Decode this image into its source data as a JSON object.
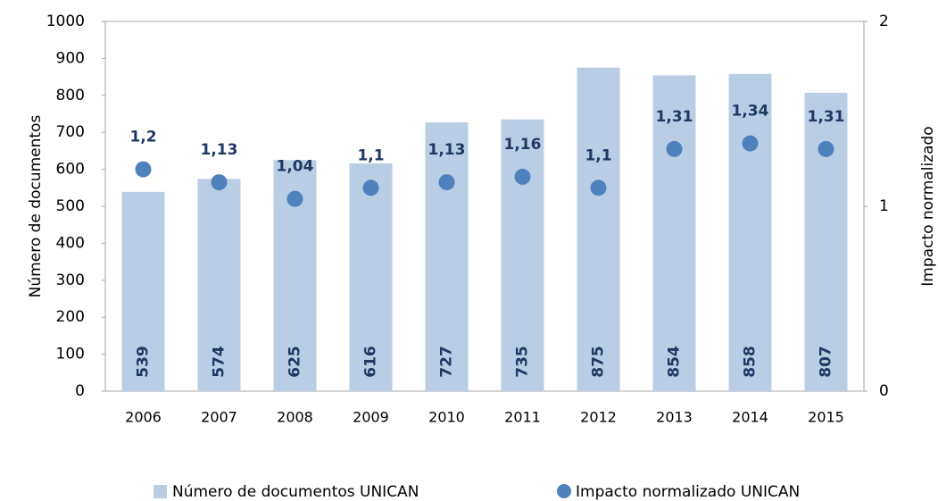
{
  "chart_data": {
    "type": "bar",
    "categories": [
      "2006",
      "2007",
      "2008",
      "2009",
      "2010",
      "2011",
      "2012",
      "2013",
      "2014",
      "2015"
    ],
    "series": [
      {
        "name": "Número de documentos UNICAN",
        "type": "bar",
        "color": "#b9cde5",
        "values": [
          539,
          574,
          625,
          616,
          727,
          735,
          875,
          854,
          858,
          807
        ]
      },
      {
        "name": "Impacto normalizado UNICAN",
        "type": "scatter",
        "axis": "y2",
        "color": "#4f81bd",
        "values": [
          1.2,
          1.13,
          1.04,
          1.1,
          1.13,
          1.16,
          1.1,
          1.31,
          1.34,
          1.31
        ],
        "value_labels": [
          "1,2",
          "1,13",
          "1,04",
          "1,1",
          "1,13",
          "1,16",
          "1,1",
          "1,31",
          "1,34",
          "1,31"
        ]
      }
    ],
    "ylabel": "Número de documentos",
    "y2label": "Impacto normalizado",
    "ylim": [
      0,
      1000
    ],
    "yticks": [
      0,
      100,
      200,
      300,
      400,
      500,
      600,
      700,
      800,
      900,
      1000
    ],
    "y2lim": [
      0,
      2
    ],
    "y2ticks": [
      0,
      1,
      2
    ],
    "legend": "bottom"
  }
}
